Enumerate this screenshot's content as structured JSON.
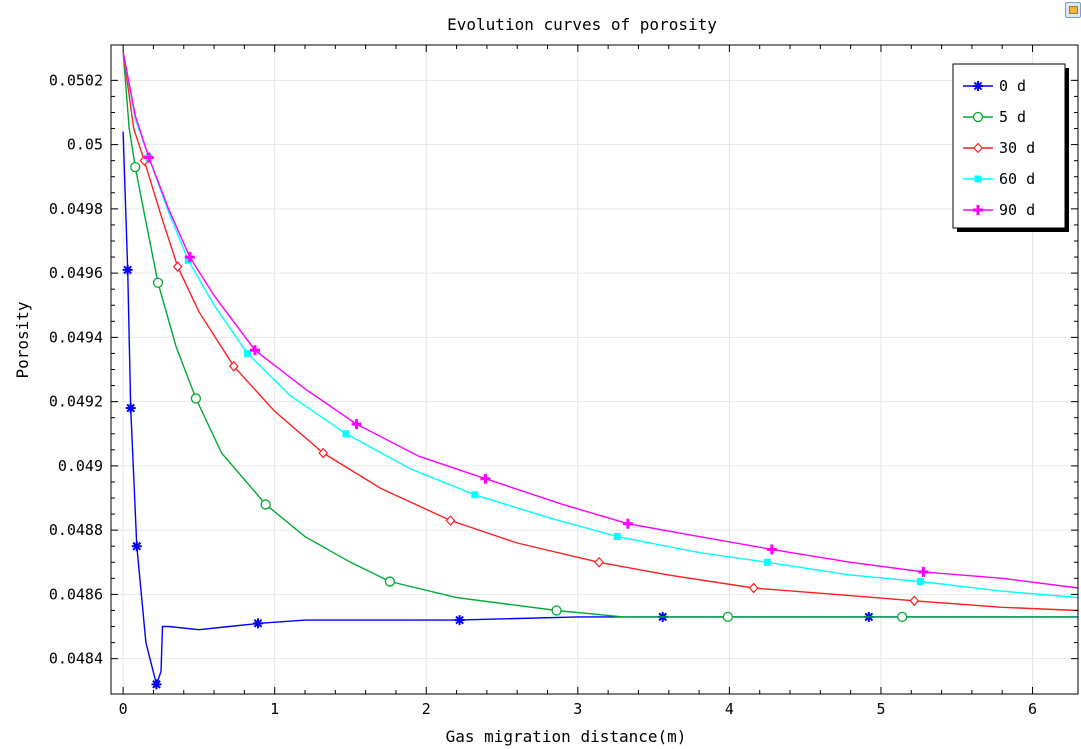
{
  "chart_data": {
    "type": "line",
    "title": "Evolution curves of porosity",
    "xlabel": "Gas migration distance(m)",
    "ylabel": "Porosity",
    "xlim": [
      -0.08,
      6.3
    ],
    "ylim": [
      0.04829,
      0.05031
    ],
    "grid": true,
    "legend_position": "top-right",
    "x_ticks": [
      {
        "value": 0,
        "label": "0"
      },
      {
        "value": 1,
        "label": "1"
      },
      {
        "value": 2,
        "label": "2"
      },
      {
        "value": 3,
        "label": "3"
      },
      {
        "value": 4,
        "label": "4"
      },
      {
        "value": 5,
        "label": "5"
      },
      {
        "value": 6,
        "label": "6"
      }
    ],
    "y_ticks": [
      {
        "value": 0.0484,
        "label": "0.0484"
      },
      {
        "value": 0.0486,
        "label": "0.0486"
      },
      {
        "value": 0.0488,
        "label": "0.0488"
      },
      {
        "value": 0.049,
        "label": "0.049"
      },
      {
        "value": 0.0492,
        "label": "0.0492"
      },
      {
        "value": 0.0494,
        "label": "0.0494"
      },
      {
        "value": 0.0496,
        "label": "0.0496"
      },
      {
        "value": 0.0498,
        "label": "0.0498"
      },
      {
        "value": 0.05,
        "label": "0.05"
      },
      {
        "value": 0.0502,
        "label": "0.0502"
      }
    ],
    "series": [
      {
        "name": "0 d",
        "color": "#0000ff",
        "marker": "asterisk",
        "points": [
          [
            0.0,
            0.05004
          ],
          [
            0.02,
            0.04975
          ],
          [
            0.03,
            0.04961
          ],
          [
            0.05,
            0.04918
          ],
          [
            0.09,
            0.04875
          ],
          [
            0.15,
            0.04845
          ],
          [
            0.22,
            0.04832
          ],
          [
            0.25,
            0.04836
          ],
          [
            0.26,
            0.0485
          ],
          [
            0.3,
            0.0485
          ],
          [
            0.5,
            0.04849
          ],
          [
            0.7,
            0.0485
          ],
          [
            0.9,
            0.04851
          ],
          [
            1.2,
            0.04852
          ],
          [
            1.6,
            0.04852
          ],
          [
            2.2,
            0.04852
          ],
          [
            3.0,
            0.04853
          ],
          [
            3.6,
            0.04853
          ],
          [
            4.2,
            0.04853
          ],
          [
            4.9,
            0.04853
          ],
          [
            6.3,
            0.04853
          ]
        ],
        "markers": [
          [
            0.03,
            0.04961
          ],
          [
            0.05,
            0.04918
          ],
          [
            0.09,
            0.04875
          ],
          [
            0.22,
            0.04832
          ],
          [
            0.89,
            0.04851
          ],
          [
            2.22,
            0.04852
          ],
          [
            3.56,
            0.04853
          ],
          [
            4.92,
            0.04853
          ]
        ]
      },
      {
        "name": "5 d",
        "color": "#00aa33",
        "marker": "circle",
        "points": [
          [
            0.0,
            0.05029
          ],
          [
            0.04,
            0.05005
          ],
          [
            0.08,
            0.04993
          ],
          [
            0.15,
            0.04976
          ],
          [
            0.23,
            0.04957
          ],
          [
            0.35,
            0.04937
          ],
          [
            0.48,
            0.04921
          ],
          [
            0.65,
            0.04904
          ],
          [
            0.85,
            0.04893
          ],
          [
            0.94,
            0.04888
          ],
          [
            1.2,
            0.04878
          ],
          [
            1.5,
            0.0487
          ],
          [
            1.76,
            0.04864
          ],
          [
            2.2,
            0.04859
          ],
          [
            2.86,
            0.04855
          ],
          [
            3.3,
            0.04853
          ],
          [
            4.0,
            0.04853
          ],
          [
            5.14,
            0.04853
          ],
          [
            6.3,
            0.04853
          ]
        ],
        "markers": [
          [
            0.08,
            0.04993
          ],
          [
            0.23,
            0.04957
          ],
          [
            0.48,
            0.04921
          ],
          [
            0.94,
            0.04888
          ],
          [
            1.76,
            0.04864
          ],
          [
            2.86,
            0.04855
          ],
          [
            3.99,
            0.04853
          ],
          [
            5.14,
            0.04853
          ]
        ]
      },
      {
        "name": "30 d",
        "color": "#ff2020",
        "marker": "diamond",
        "points": [
          [
            0.0,
            0.05029
          ],
          [
            0.07,
            0.05005
          ],
          [
            0.14,
            0.04995
          ],
          [
            0.25,
            0.04978
          ],
          [
            0.36,
            0.04962
          ],
          [
            0.5,
            0.04948
          ],
          [
            0.73,
            0.04931
          ],
          [
            1.0,
            0.04917
          ],
          [
            1.32,
            0.04904
          ],
          [
            1.7,
            0.04893
          ],
          [
            2.16,
            0.04883
          ],
          [
            2.6,
            0.04876
          ],
          [
            3.14,
            0.0487
          ],
          [
            3.6,
            0.04866
          ],
          [
            4.16,
            0.04862
          ],
          [
            4.7,
            0.0486
          ],
          [
            5.22,
            0.04858
          ],
          [
            5.8,
            0.04856
          ],
          [
            6.3,
            0.04855
          ]
        ],
        "markers": [
          [
            0.14,
            0.04995
          ],
          [
            0.36,
            0.04962
          ],
          [
            0.73,
            0.04931
          ],
          [
            1.32,
            0.04904
          ],
          [
            2.16,
            0.04883
          ],
          [
            3.14,
            0.0487
          ],
          [
            4.16,
            0.04862
          ],
          [
            5.22,
            0.04858
          ]
        ]
      },
      {
        "name": "60 d",
        "color": "#00ffff",
        "marker": "square",
        "points": [
          [
            0.0,
            0.05029
          ],
          [
            0.08,
            0.05008
          ],
          [
            0.17,
            0.04996
          ],
          [
            0.3,
            0.04979
          ],
          [
            0.43,
            0.04964
          ],
          [
            0.6,
            0.0495
          ],
          [
            0.82,
            0.04935
          ],
          [
            1.1,
            0.04922
          ],
          [
            1.47,
            0.0491
          ],
          [
            1.9,
            0.04899
          ],
          [
            2.32,
            0.04891
          ],
          [
            2.8,
            0.04884
          ],
          [
            3.26,
            0.04878
          ],
          [
            3.8,
            0.04873
          ],
          [
            4.25,
            0.0487
          ],
          [
            4.8,
            0.04866
          ],
          [
            5.26,
            0.04864
          ],
          [
            5.8,
            0.04861
          ],
          [
            6.3,
            0.04859
          ]
        ],
        "markers": [
          [
            0.17,
            0.04996
          ],
          [
            0.43,
            0.04964
          ],
          [
            0.82,
            0.04935
          ],
          [
            1.47,
            0.0491
          ],
          [
            2.32,
            0.04891
          ],
          [
            3.26,
            0.04878
          ],
          [
            4.25,
            0.0487
          ],
          [
            5.26,
            0.04864
          ]
        ]
      },
      {
        "name": "90 d",
        "color": "#ff00ff",
        "marker": "plus",
        "points": [
          [
            0.0,
            0.05029
          ],
          [
            0.08,
            0.05009
          ],
          [
            0.17,
            0.04996
          ],
          [
            0.3,
            0.0498
          ],
          [
            0.44,
            0.04965
          ],
          [
            0.6,
            0.04953
          ],
          [
            0.87,
            0.04936
          ],
          [
            1.2,
            0.04924
          ],
          [
            1.54,
            0.04913
          ],
          [
            1.95,
            0.04903
          ],
          [
            2.39,
            0.04896
          ],
          [
            2.9,
            0.04888
          ],
          [
            3.33,
            0.04882
          ],
          [
            3.8,
            0.04878
          ],
          [
            4.28,
            0.04874
          ],
          [
            4.8,
            0.0487
          ],
          [
            5.28,
            0.04867
          ],
          [
            5.8,
            0.04865
          ],
          [
            6.3,
            0.04862
          ]
        ],
        "markers": [
          [
            0.17,
            0.04996
          ],
          [
            0.44,
            0.04965
          ],
          [
            0.87,
            0.04936
          ],
          [
            1.54,
            0.04913
          ],
          [
            2.39,
            0.04896
          ],
          [
            3.33,
            0.04882
          ],
          [
            4.28,
            0.04874
          ],
          [
            5.28,
            0.04867
          ]
        ]
      }
    ]
  }
}
